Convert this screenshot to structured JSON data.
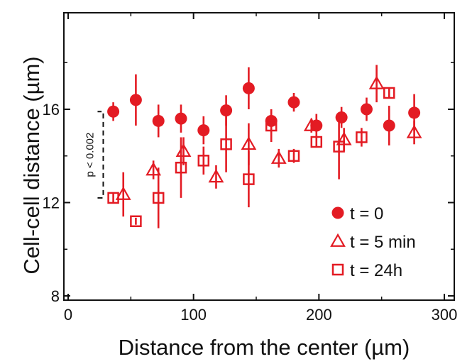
{
  "chart_data": {
    "type": "scatter",
    "xlabel": "Distance from the center (µm)",
    "ylabel": "Cell-cell distance (µm)",
    "xlim": [
      0,
      300
    ],
    "ylim": [
      7.5,
      19.5
    ],
    "x_ticks": [
      0,
      100,
      200,
      300
    ],
    "x_tick_labels": [
      "0",
      "100",
      "200",
      "300"
    ],
    "y_ticks": [
      8,
      12,
      16
    ],
    "y_tick_labels": [
      "8",
      "12",
      "16"
    ],
    "grid": false,
    "legend_position": "bottom-right",
    "colors": {
      "series": "#e31b23",
      "axis": "#111111"
    },
    "series": [
      {
        "name": "t = 0",
        "marker": "filled-circle",
        "points": [
          {
            "x": 36,
            "y": 15.9,
            "err": 0.4
          },
          {
            "x": 54,
            "y": 16.4,
            "err": 1.1
          },
          {
            "x": 72,
            "y": 15.5,
            "err": 0.7
          },
          {
            "x": 90,
            "y": 15.6,
            "err": 0.6
          },
          {
            "x": 108,
            "y": 15.1,
            "err": 0.6
          },
          {
            "x": 126,
            "y": 15.95,
            "err": 0.65
          },
          {
            "x": 144,
            "y": 16.9,
            "err": 0.9
          },
          {
            "x": 162,
            "y": 15.5,
            "err": 0.5
          },
          {
            "x": 180,
            "y": 16.3,
            "err": 0.4
          },
          {
            "x": 198,
            "y": 15.3,
            "err": 0.5
          },
          {
            "x": 218,
            "y": 15.65,
            "err": 0.45
          },
          {
            "x": 238,
            "y": 16.0,
            "err": 0.5
          },
          {
            "x": 256,
            "y": 15.3,
            "err": 0.85
          },
          {
            "x": 276,
            "y": 15.85,
            "err": 0.8
          }
        ]
      },
      {
        "name": "t = 5 min",
        "marker": "open-triangle",
        "points": [
          {
            "x": 44,
            "y": 12.35,
            "err": 0.95
          },
          {
            "x": 68,
            "y": 13.4,
            "err": 0.4
          },
          {
            "x": 92,
            "y": 14.2,
            "err": 0.6
          },
          {
            "x": 118,
            "y": 13.1,
            "err": 0.5
          },
          {
            "x": 144,
            "y": 14.5,
            "err": 0.9
          },
          {
            "x": 168,
            "y": 13.9,
            "err": 0.4
          },
          {
            "x": 194,
            "y": 15.3,
            "err": 0.3
          },
          {
            "x": 220,
            "y": 14.7,
            "err": 0.5
          },
          {
            "x": 246,
            "y": 17.1,
            "err": 0.8
          },
          {
            "x": 276,
            "y": 15.0,
            "err": 0.5
          }
        ]
      },
      {
        "name": "t = 24h",
        "marker": "open-square",
        "points": [
          {
            "x": 36,
            "y": 12.2,
            "err": 0.2
          },
          {
            "x": 54,
            "y": 11.2,
            "err": 0.15
          },
          {
            "x": 72,
            "y": 12.2,
            "err": 1.3
          },
          {
            "x": 90,
            "y": 13.5,
            "err": 1.3
          },
          {
            "x": 108,
            "y": 13.8,
            "err": 0.6
          },
          {
            "x": 126,
            "y": 14.5,
            "err": 1.2
          },
          {
            "x": 144,
            "y": 13.0,
            "err": 1.2
          },
          {
            "x": 162,
            "y": 15.3,
            "err": 0.7
          },
          {
            "x": 180,
            "y": 14.0,
            "err": 0.3
          },
          {
            "x": 198,
            "y": 14.6,
            "err": 0.2
          },
          {
            "x": 216,
            "y": 14.4,
            "err": 1.4
          },
          {
            "x": 234,
            "y": 14.8,
            "err": 0.4
          },
          {
            "x": 256,
            "y": 16.7,
            "err": 0.2
          }
        ]
      }
    ],
    "annotations": [
      {
        "text": "p < 0.002",
        "bracket_x": 28,
        "y_from": 12.2,
        "y_to": 15.9
      }
    ]
  }
}
